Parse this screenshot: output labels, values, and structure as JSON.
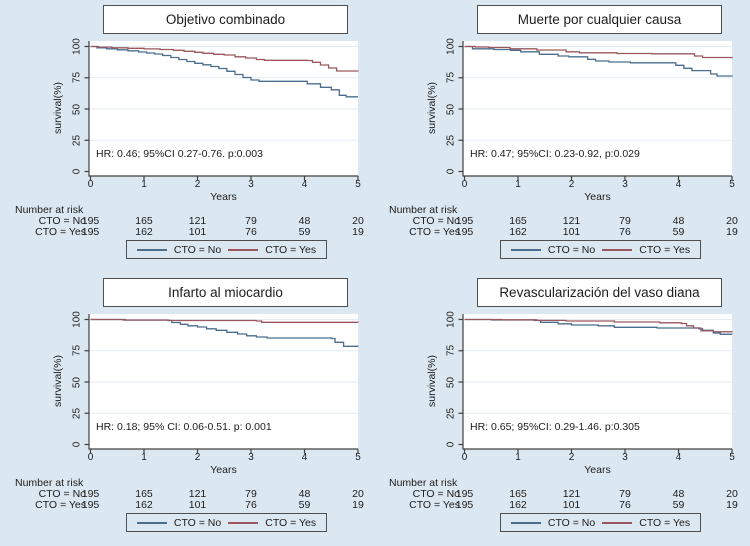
{
  "figure": {
    "background_color": "#dce8f1",
    "plot_background_color": "#ffffff",
    "gridline_color": "#e3ebf3",
    "axis_color": "#404040",
    "box_border_color": "#4f4f4f",
    "series_colors": {
      "cto_no": "#4a6d8e",
      "cto_yes": "#9a575e"
    }
  },
  "chart_data": [
    {
      "id": "objetivo-combinado",
      "type": "line",
      "kind": "kaplan-meier-step",
      "title": "Objetivo combinado",
      "hr_annotation": "HR: 0.46; 95%CI 0.27-0.76. p:0.003",
      "x_label": "Years",
      "y_label": "survival(%)",
      "x_ticks": [
        "0",
        "1",
        "2",
        "3",
        "4",
        "5"
      ],
      "y_ticks": [
        "0",
        "25",
        "50",
        "75",
        "100"
      ],
      "x_range": [
        0,
        5
      ],
      "y_range": [
        0,
        100
      ],
      "grid": true,
      "legend_position": "bottom",
      "series": [
        {
          "name": "CTO = No",
          "color": "#4a6d8e",
          "points": [
            [
              0,
              100
            ],
            [
              0.12,
              99
            ],
            [
              0.3,
              98.2
            ],
            [
              0.5,
              97.4
            ],
            [
              0.7,
              96.6
            ],
            [
              0.9,
              95.6
            ],
            [
              1.05,
              94.8
            ],
            [
              1.2,
              94
            ],
            [
              1.35,
              92.8
            ],
            [
              1.5,
              91.2
            ],
            [
              1.65,
              89.6
            ],
            [
              1.8,
              88
            ],
            [
              1.95,
              86.6
            ],
            [
              2.1,
              85.4
            ],
            [
              2.25,
              84
            ],
            [
              2.4,
              82.4
            ],
            [
              2.55,
              80.2
            ],
            [
              2.7,
              77.6
            ],
            [
              2.85,
              75.2
            ],
            [
              3.0,
              73.2
            ],
            [
              3.15,
              72.2
            ],
            [
              4.05,
              70.2
            ],
            [
              4.3,
              67.4
            ],
            [
              4.5,
              65.4
            ],
            [
              4.65,
              61
            ],
            [
              4.78,
              59.8
            ],
            [
              5,
              59.8
            ]
          ]
        },
        {
          "name": "CTO = Yes",
          "color": "#9a575e",
          "points": [
            [
              0,
              100
            ],
            [
              0.15,
              99.5
            ],
            [
              0.4,
              99
            ],
            [
              0.7,
              98.6
            ],
            [
              1.0,
              98.1
            ],
            [
              1.3,
              97.6
            ],
            [
              1.55,
              97
            ],
            [
              1.75,
              96.2
            ],
            [
              1.95,
              95.4
            ],
            [
              2.1,
              94.6
            ],
            [
              2.3,
              93.8
            ],
            [
              2.5,
              93.2
            ],
            [
              2.7,
              91.8
            ],
            [
              2.9,
              90.8
            ],
            [
              3.1,
              89.6
            ],
            [
              3.25,
              89
            ],
            [
              4.05,
              88.8
            ],
            [
              4.15,
              87.4
            ],
            [
              4.3,
              85.2
            ],
            [
              4.45,
              82.8
            ],
            [
              4.6,
              80.4
            ],
            [
              5,
              80.2
            ]
          ]
        }
      ],
      "legend": [
        {
          "label": "CTO = No"
        },
        {
          "label": "CTO = Yes"
        }
      ],
      "number_at_risk": {
        "heading": "Number at risk",
        "rows": [
          {
            "label": "CTO = No",
            "values": [
              "195",
              "165",
              "121",
              "79",
              "48",
              "20"
            ]
          },
          {
            "label": "CTO = Yes",
            "values": [
              "195",
              "162",
              "101",
              "76",
              "59",
              "19"
            ]
          }
        ]
      }
    },
    {
      "id": "muerte-por-cualquier-causa",
      "type": "line",
      "kind": "kaplan-meier-step",
      "title": "Muerte por cualquier causa",
      "hr_annotation": "HR: 0.47; 95%CI: 0.23-0.92, p:0.029",
      "x_label": "Years",
      "y_label": "survival(%)",
      "x_ticks": [
        "0",
        "1",
        "2",
        "3",
        "4",
        "5"
      ],
      "y_ticks": [
        "0",
        "25",
        "50",
        "75",
        "100"
      ],
      "x_range": [
        0,
        5
      ],
      "y_range": [
        0,
        100
      ],
      "grid": true,
      "legend_position": "bottom",
      "series": [
        {
          "name": "CTO = No",
          "color": "#4a6d8e",
          "points": [
            [
              0,
              100
            ],
            [
              0.15,
              98.2
            ],
            [
              0.55,
              97.6
            ],
            [
              0.86,
              97
            ],
            [
              1.05,
              95.8
            ],
            [
              1.4,
              93.8
            ],
            [
              1.75,
              92.4
            ],
            [
              1.95,
              91.8
            ],
            [
              2.3,
              89.8
            ],
            [
              2.45,
              88.4
            ],
            [
              2.7,
              87.6
            ],
            [
              3.1,
              87
            ],
            [
              3.95,
              85
            ],
            [
              4.1,
              82.6
            ],
            [
              4.25,
              80.7
            ],
            [
              4.6,
              78
            ],
            [
              4.72,
              76.4
            ],
            [
              5,
              76
            ]
          ]
        },
        {
          "name": "CTO = Yes",
          "color": "#9a575e",
          "points": [
            [
              0,
              100
            ],
            [
              0.2,
              99.6
            ],
            [
              0.45,
              99.2
            ],
            [
              0.85,
              98.2
            ],
            [
              1.35,
              97.2
            ],
            [
              1.9,
              95.8
            ],
            [
              2.15,
              95
            ],
            [
              2.85,
              94.4
            ],
            [
              3.5,
              94.2
            ],
            [
              4.3,
              92.4
            ],
            [
              4.45,
              91.2
            ],
            [
              5,
              90.6
            ]
          ]
        }
      ],
      "legend": [
        {
          "label": "CTO = No"
        },
        {
          "label": "CTO = Yes"
        }
      ],
      "number_at_risk": {
        "heading": "Number at risk",
        "rows": [
          {
            "label": "CTO = No",
            "values": [
              "195",
              "165",
              "121",
              "79",
              "48",
              "20"
            ]
          },
          {
            "label": "CTO = Yes",
            "values": [
              "195",
              "162",
              "101",
              "76",
              "59",
              "19"
            ]
          }
        ]
      }
    },
    {
      "id": "infarto-al-miocardio",
      "type": "line",
      "kind": "kaplan-meier-step",
      "title": "Infarto al miocardio",
      "hr_annotation": "HR: 0.18; 95% CI: 0.06-0.51. p: 0.001",
      "x_label": "Years",
      "y_label": "survival(%)",
      "x_ticks": [
        "0",
        "1",
        "2",
        "3",
        "4",
        "5"
      ],
      "y_ticks": [
        "0",
        "25",
        "50",
        "75",
        "100"
      ],
      "x_range": [
        0,
        5
      ],
      "y_range": [
        0,
        100
      ],
      "grid": true,
      "legend_position": "bottom",
      "series": [
        {
          "name": "CTO = No",
          "color": "#4a6d8e",
          "points": [
            [
              0,
              100
            ],
            [
              0.65,
              99.5
            ],
            [
              1.45,
              99.2
            ],
            [
              1.52,
              97.6
            ],
            [
              1.68,
              96.2
            ],
            [
              1.82,
              95
            ],
            [
              2.0,
              94
            ],
            [
              2.17,
              92.6
            ],
            [
              2.35,
              91.4
            ],
            [
              2.55,
              89.8
            ],
            [
              2.75,
              88.4
            ],
            [
              2.92,
              87
            ],
            [
              3.1,
              86
            ],
            [
              3.3,
              85.2
            ],
            [
              4.5,
              84.8
            ],
            [
              4.57,
              81.8
            ],
            [
              4.73,
              78.6
            ],
            [
              5,
              78.4
            ]
          ]
        },
        {
          "name": "CTO = Yes",
          "color": "#9a575e",
          "points": [
            [
              0,
              100
            ],
            [
              0.6,
              99.6
            ],
            [
              1.45,
              99.2
            ],
            [
              3.1,
              98.8
            ],
            [
              3.2,
              97.8
            ],
            [
              5,
              97.6
            ]
          ]
        }
      ],
      "legend": [
        {
          "label": "CTO = No"
        },
        {
          "label": "CTO = Yes"
        }
      ],
      "number_at_risk": {
        "heading": "Number at risk",
        "rows": [
          {
            "label": "CTO = No",
            "values": [
              "195",
              "165",
              "121",
              "79",
              "48",
              "20"
            ]
          },
          {
            "label": "CTO = Yes",
            "values": [
              "195",
              "162",
              "101",
              "76",
              "59",
              "19"
            ]
          }
        ]
      }
    },
    {
      "id": "revascularizacion-del-vaso-diana",
      "type": "line",
      "kind": "kaplan-meier-step",
      "title": "Revascularización del vaso diana",
      "hr_annotation": "HR: 0.65; 95%CI: 0.29-1.46. p:0.305",
      "x_label": "Years",
      "y_label": "survival(%)",
      "x_ticks": [
        "0",
        "1",
        "2",
        "3",
        "4",
        "5"
      ],
      "y_ticks": [
        "0",
        "25",
        "50",
        "75",
        "100"
      ],
      "x_range": [
        0,
        5
      ],
      "y_range": [
        0,
        100
      ],
      "grid": true,
      "legend_position": "bottom",
      "series": [
        {
          "name": "CTO = No",
          "color": "#4a6d8e",
          "points": [
            [
              0,
              100
            ],
            [
              0.5,
              99.6
            ],
            [
              1.3,
              99.2
            ],
            [
              1.42,
              97.8
            ],
            [
              1.75,
              96.6
            ],
            [
              2.0,
              95.6
            ],
            [
              2.5,
              95
            ],
            [
              2.8,
              93.8
            ],
            [
              3.6,
              93.2
            ],
            [
              4.38,
              92.6
            ],
            [
              4.45,
              91.4
            ],
            [
              4.65,
              89.2
            ],
            [
              4.78,
              88.2
            ],
            [
              5,
              88
            ]
          ]
        },
        {
          "name": "CTO = Yes",
          "color": "#9a575e",
          "points": [
            [
              0,
              100
            ],
            [
              0.7,
              99.8
            ],
            [
              1.35,
              99.3
            ],
            [
              1.9,
              98.8
            ],
            [
              2.8,
              98
            ],
            [
              3.65,
              97.4
            ],
            [
              4.05,
              96.8
            ],
            [
              4.15,
              95
            ],
            [
              4.28,
              93.2
            ],
            [
              4.42,
              91
            ],
            [
              4.65,
              90.2
            ],
            [
              5,
              90
            ]
          ]
        }
      ],
      "legend": [
        {
          "label": "CTO = No"
        },
        {
          "label": "CTO = Yes"
        }
      ],
      "number_at_risk": {
        "heading": "Number at risk",
        "rows": [
          {
            "label": "CTO = No",
            "values": [
              "195",
              "165",
              "121",
              "79",
              "48",
              "20"
            ]
          },
          {
            "label": "CTO = Yes",
            "values": [
              "195",
              "162",
              "101",
              "76",
              "59",
              "19"
            ]
          }
        ]
      }
    }
  ]
}
